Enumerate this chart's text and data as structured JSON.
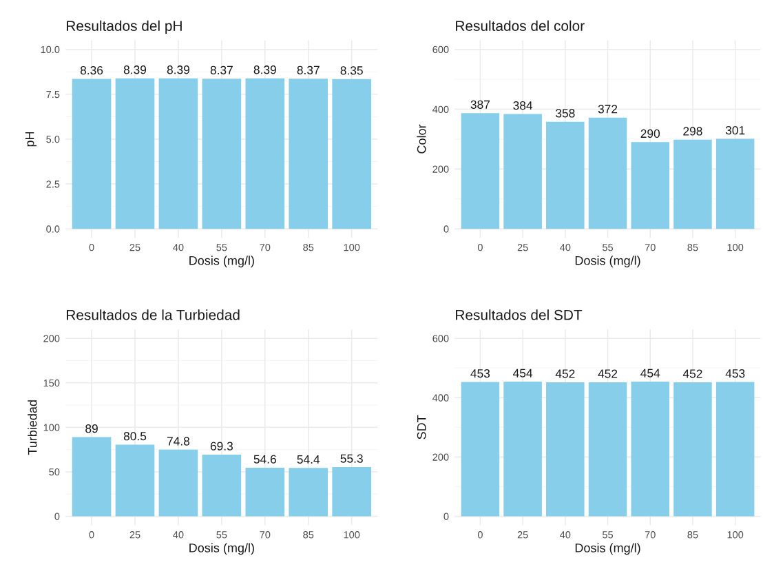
{
  "chart_data": [
    {
      "type": "bar",
      "title": "Resultados del pH",
      "xlabel": "Dosis (mg/l)",
      "ylabel": "pH",
      "categories": [
        "0",
        "25",
        "40",
        "55",
        "70",
        "85",
        "100"
      ],
      "values": [
        8.36,
        8.39,
        8.39,
        8.37,
        8.39,
        8.37,
        8.35
      ],
      "color": "#87ceeb",
      "ylim": [
        -0.5,
        10.5
      ],
      "yticks": [
        {
          "value": 0,
          "label": "0.0"
        },
        {
          "value": 2.5,
          "label": "2.5"
        },
        {
          "value": 5,
          "label": "5.0"
        },
        {
          "value": 7.5,
          "label": "7.5"
        },
        {
          "value": 10,
          "label": "10.0"
        }
      ],
      "grid": true,
      "data_labels": true
    },
    {
      "type": "bar",
      "title": "Resultados del color",
      "xlabel": "Dosis (mg/l)",
      "ylabel": "Color",
      "categories": [
        "0",
        "25",
        "40",
        "55",
        "70",
        "85",
        "100"
      ],
      "values": [
        387,
        384,
        358,
        372,
        290,
        298,
        301
      ],
      "color": "#87ceeb",
      "ylim": [
        -30,
        630
      ],
      "yticks": [
        0,
        200,
        400,
        600
      ],
      "grid": true,
      "data_labels": true
    },
    {
      "type": "bar",
      "title": "Resultados de la Turbiedad",
      "xlabel": "Dosis (mg/l)",
      "ylabel": "Turbiedad",
      "categories": [
        "0",
        "25",
        "40",
        "55",
        "70",
        "85",
        "100"
      ],
      "values": [
        89,
        80.5,
        74.8,
        69.3,
        54.6,
        54.4,
        55.3
      ],
      "color": "#87ceeb",
      "ylim": [
        -10,
        210
      ],
      "yticks": [
        0,
        50,
        100,
        150,
        200
      ],
      "grid": true,
      "data_labels": true
    },
    {
      "type": "bar",
      "title": "Resultados del SDT",
      "xlabel": "Dosis (mg/l)",
      "ylabel": "SDT",
      "categories": [
        "0",
        "25",
        "40",
        "55",
        "70",
        "85",
        "100"
      ],
      "values": [
        453,
        454,
        452,
        452,
        454,
        452,
        453
      ],
      "color": "#87ceeb",
      "ylim": [
        -30,
        630
      ],
      "yticks": [
        0,
        200,
        400,
        600
      ],
      "grid": true,
      "data_labels": true
    }
  ]
}
